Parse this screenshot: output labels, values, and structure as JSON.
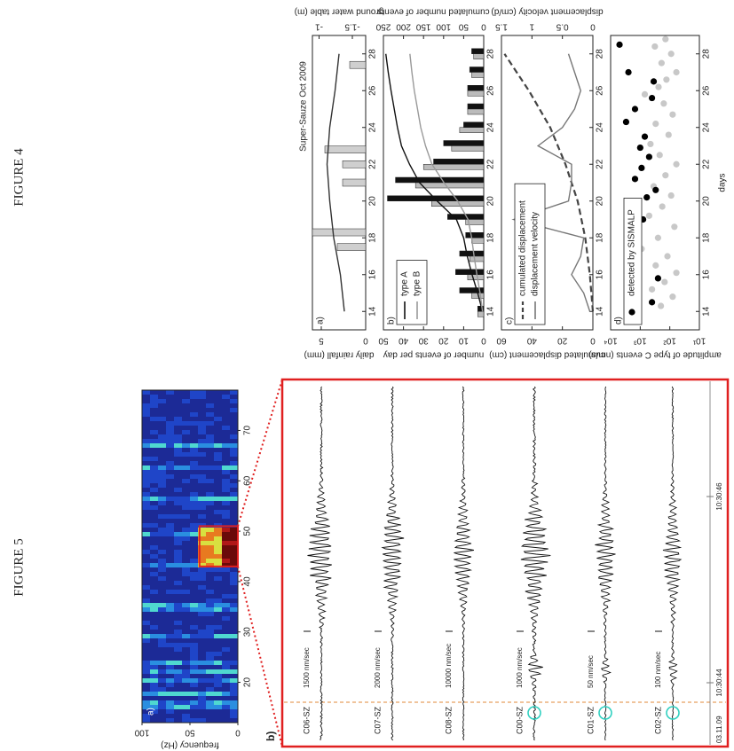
{
  "page": {
    "figure_labels": [
      "FIGURE 4",
      "FIGURE 5"
    ]
  },
  "chart_data": [
    {
      "type": "bar",
      "panel_label": "a)",
      "title": "Super-Sauze Oct 2009",
      "ylabel": "daily rainfall (mm)",
      "y2label": "ground water table (m)",
      "xlim": [
        13,
        29
      ],
      "xticks": [
        14,
        16,
        18,
        20,
        22,
        24,
        26,
        28
      ],
      "ylim": [
        0,
        6
      ],
      "yticks": [
        0,
        5
      ],
      "y2lim": [
        -1.7,
        -0.9
      ],
      "y2ticks": [
        -1,
        -1.5
      ],
      "series": [
        {
          "color": "#cfcfcf",
          "x": [
            17.5,
            18.3,
            21,
            22,
            22.8,
            27.4
          ],
          "values": [
            3.2,
            6,
            2.6,
            2.6,
            4.6,
            1.8
          ]
        },
        {
          "type": "line",
          "axis": "y2",
          "color": "#333333",
          "x": [
            14,
            16,
            18,
            20,
            22,
            24,
            26,
            28
          ],
          "values": [
            -1.38,
            -1.32,
            -1.22,
            -1.16,
            -1.12,
            -1.16,
            -1.24,
            -1.3
          ]
        }
      ]
    },
    {
      "type": "bar",
      "panel_label": "b)",
      "ylabel": "number of events per day",
      "y2label": "cumulated number of events",
      "xlim": [
        13,
        29
      ],
      "xticks": [
        14,
        16,
        18,
        20,
        22,
        24,
        26,
        28
      ],
      "ylim": [
        0,
        50
      ],
      "yticks": [
        0,
        10,
        20,
        30,
        40,
        50
      ],
      "y2lim": [
        0,
        250
      ],
      "y2ticks": [
        0,
        50,
        100,
        150,
        200,
        250
      ],
      "series": [
        {
          "color": "#111111",
          "x": [
            14,
            15,
            16,
            17,
            18,
            19,
            20,
            21,
            22,
            23,
            24,
            25,
            26,
            27,
            28
          ],
          "values": [
            3,
            12,
            14,
            12,
            9,
            18,
            48,
            44,
            25,
            20,
            10,
            8,
            8,
            7,
            6
          ]
        },
        {
          "color": "#bbbbbb",
          "x": [
            14,
            15,
            16,
            17,
            18,
            19,
            20,
            21,
            22,
            23,
            24,
            25,
            26,
            27,
            28
          ],
          "values": [
            3,
            6,
            8,
            7,
            6,
            9,
            26,
            34,
            30,
            16,
            12,
            8,
            8,
            6,
            5
          ]
        },
        {
          "type": "line",
          "axis": "y2",
          "name": "type A",
          "color": "#111111",
          "x": [
            14,
            15,
            16,
            17,
            18,
            19,
            20,
            21,
            22,
            23,
            24,
            25,
            26,
            27,
            28
          ],
          "values": [
            3,
            15,
            29,
            41,
            50,
            68,
            116,
            160,
            185,
            205,
            215,
            223,
            231,
            238,
            244
          ]
        },
        {
          "type": "line",
          "axis": "y2",
          "name": "type B",
          "color": "#9a9a9a",
          "x": [
            14,
            15,
            16,
            17,
            18,
            19,
            20,
            21,
            22,
            23,
            24,
            25,
            26,
            27,
            28
          ],
          "values": [
            3,
            9,
            17,
            24,
            30,
            39,
            65,
            99,
            129,
            145,
            157,
            165,
            173,
            179,
            184
          ]
        }
      ]
    },
    {
      "type": "line",
      "panel_label": "c)",
      "ylabel": "cumulated displacement (cm)",
      "y2label": "displacement velocity (cm/d)",
      "xlim": [
        13,
        29
      ],
      "xticks": [
        14,
        16,
        18,
        20,
        22,
        24,
        26,
        28
      ],
      "ylim": [
        0,
        60
      ],
      "yticks": [
        0,
        20,
        40,
        60
      ],
      "y2lim": [
        0,
        1.5
      ],
      "y2ticks": [
        0,
        0.5,
        1,
        1.5
      ],
      "series": [
        {
          "name": "cumulated displacement",
          "color": "#444444",
          "dash": true,
          "x": [
            14,
            16,
            18,
            20,
            22,
            24,
            26,
            28
          ],
          "values": [
            0,
            2,
            5,
            10,
            18,
            28,
            42,
            58
          ]
        },
        {
          "name": "displacement velocity",
          "axis": "y2",
          "color": "#777777",
          "x": [
            14,
            15,
            16,
            17,
            18,
            19,
            20,
            21,
            22,
            23,
            24,
            25,
            26,
            27,
            28
          ],
          "values": [
            0.05,
            0.15,
            0.35,
            0.2,
            0.15,
            1.3,
            0.4,
            0.35,
            0.35,
            0.9,
            0.5,
            0.3,
            0.2,
            0.3,
            0.4
          ]
        }
      ]
    },
    {
      "type": "scatter",
      "panel_label": "d)",
      "log_y": true,
      "ylabel": "amplitude of type C events (nm/s)",
      "xlabel": "days",
      "xlim": [
        13,
        29
      ],
      "xticks": [
        14,
        16,
        18,
        20,
        22,
        24,
        26,
        28
      ],
      "ylim": [
        10,
        10000
      ],
      "yticks": [
        {
          "value": 10,
          "label": "10¹"
        },
        {
          "value": 100,
          "label": "10²"
        },
        {
          "value": 1000,
          "label": "10³"
        },
        {
          "value": 10000,
          "label": "10⁴"
        }
      ],
      "series": [
        {
          "color": "#c8c8c8",
          "x": [
            14.3,
            14.8,
            15.2,
            15.6,
            16.1,
            16.5,
            17,
            17.4,
            18,
            18.6,
            19.2,
            19.7,
            20.3,
            20.8,
            21.4,
            22,
            22.5,
            23.1,
            23.6,
            24.2,
            24.7,
            25.3,
            25.8,
            26.2,
            26.6,
            27,
            27.5,
            28,
            28.4,
            28.8
          ],
          "values": [
            200,
            80,
            400,
            150,
            60,
            300,
            120,
            900,
            250,
            70,
            500,
            180,
            90,
            350,
            140,
            60,
            220,
            450,
            110,
            300,
            80,
            160,
            700,
            240,
            130,
            60,
            190,
            90,
            320,
            140
          ]
        },
        {
          "name": "detected by SISMALP",
          "color": "#000000",
          "x": [
            14.5,
            15.8,
            17.9,
            19,
            19.6,
            20.2,
            20.6,
            21.2,
            21.8,
            22.4,
            22.9,
            23.5,
            24.3,
            25,
            25.6,
            26.5,
            27,
            28.5
          ],
          "values": [
            400,
            250,
            2000,
            800,
            1200,
            600,
            300,
            1500,
            900,
            500,
            1000,
            700,
            3000,
            1500,
            400,
            350,
            2500,
            5000
          ]
        }
      ]
    },
    {
      "type": "spectrogram",
      "panel_label": "a)",
      "ylabel": "frequency (Hz)",
      "ylim": [
        0,
        100
      ],
      "yticks": [
        100,
        50,
        0
      ],
      "xlim": [
        12,
        78
      ],
      "xticks": [
        20,
        30,
        40,
        50,
        60,
        70
      ]
    }
  ],
  "figure5": {
    "panel_label": "b)",
    "date": "03.11.09",
    "times": [
      "10:30:44",
      "10:30:46"
    ],
    "traces": [
      {
        "name": "C06-SZ",
        "scale": "1500 nm/sec"
      },
      {
        "name": "C07-SZ",
        "scale": "2000 nm/sec"
      },
      {
        "name": "C08-SZ",
        "scale": "10000 nm/sec"
      },
      {
        "name": "C00-SZ",
        "scale": "1000 nm/sec"
      },
      {
        "name": "C01-SZ",
        "scale": "50 nm/sec"
      },
      {
        "name": "C02-SZ",
        "scale": "100 nm/sec"
      }
    ]
  }
}
